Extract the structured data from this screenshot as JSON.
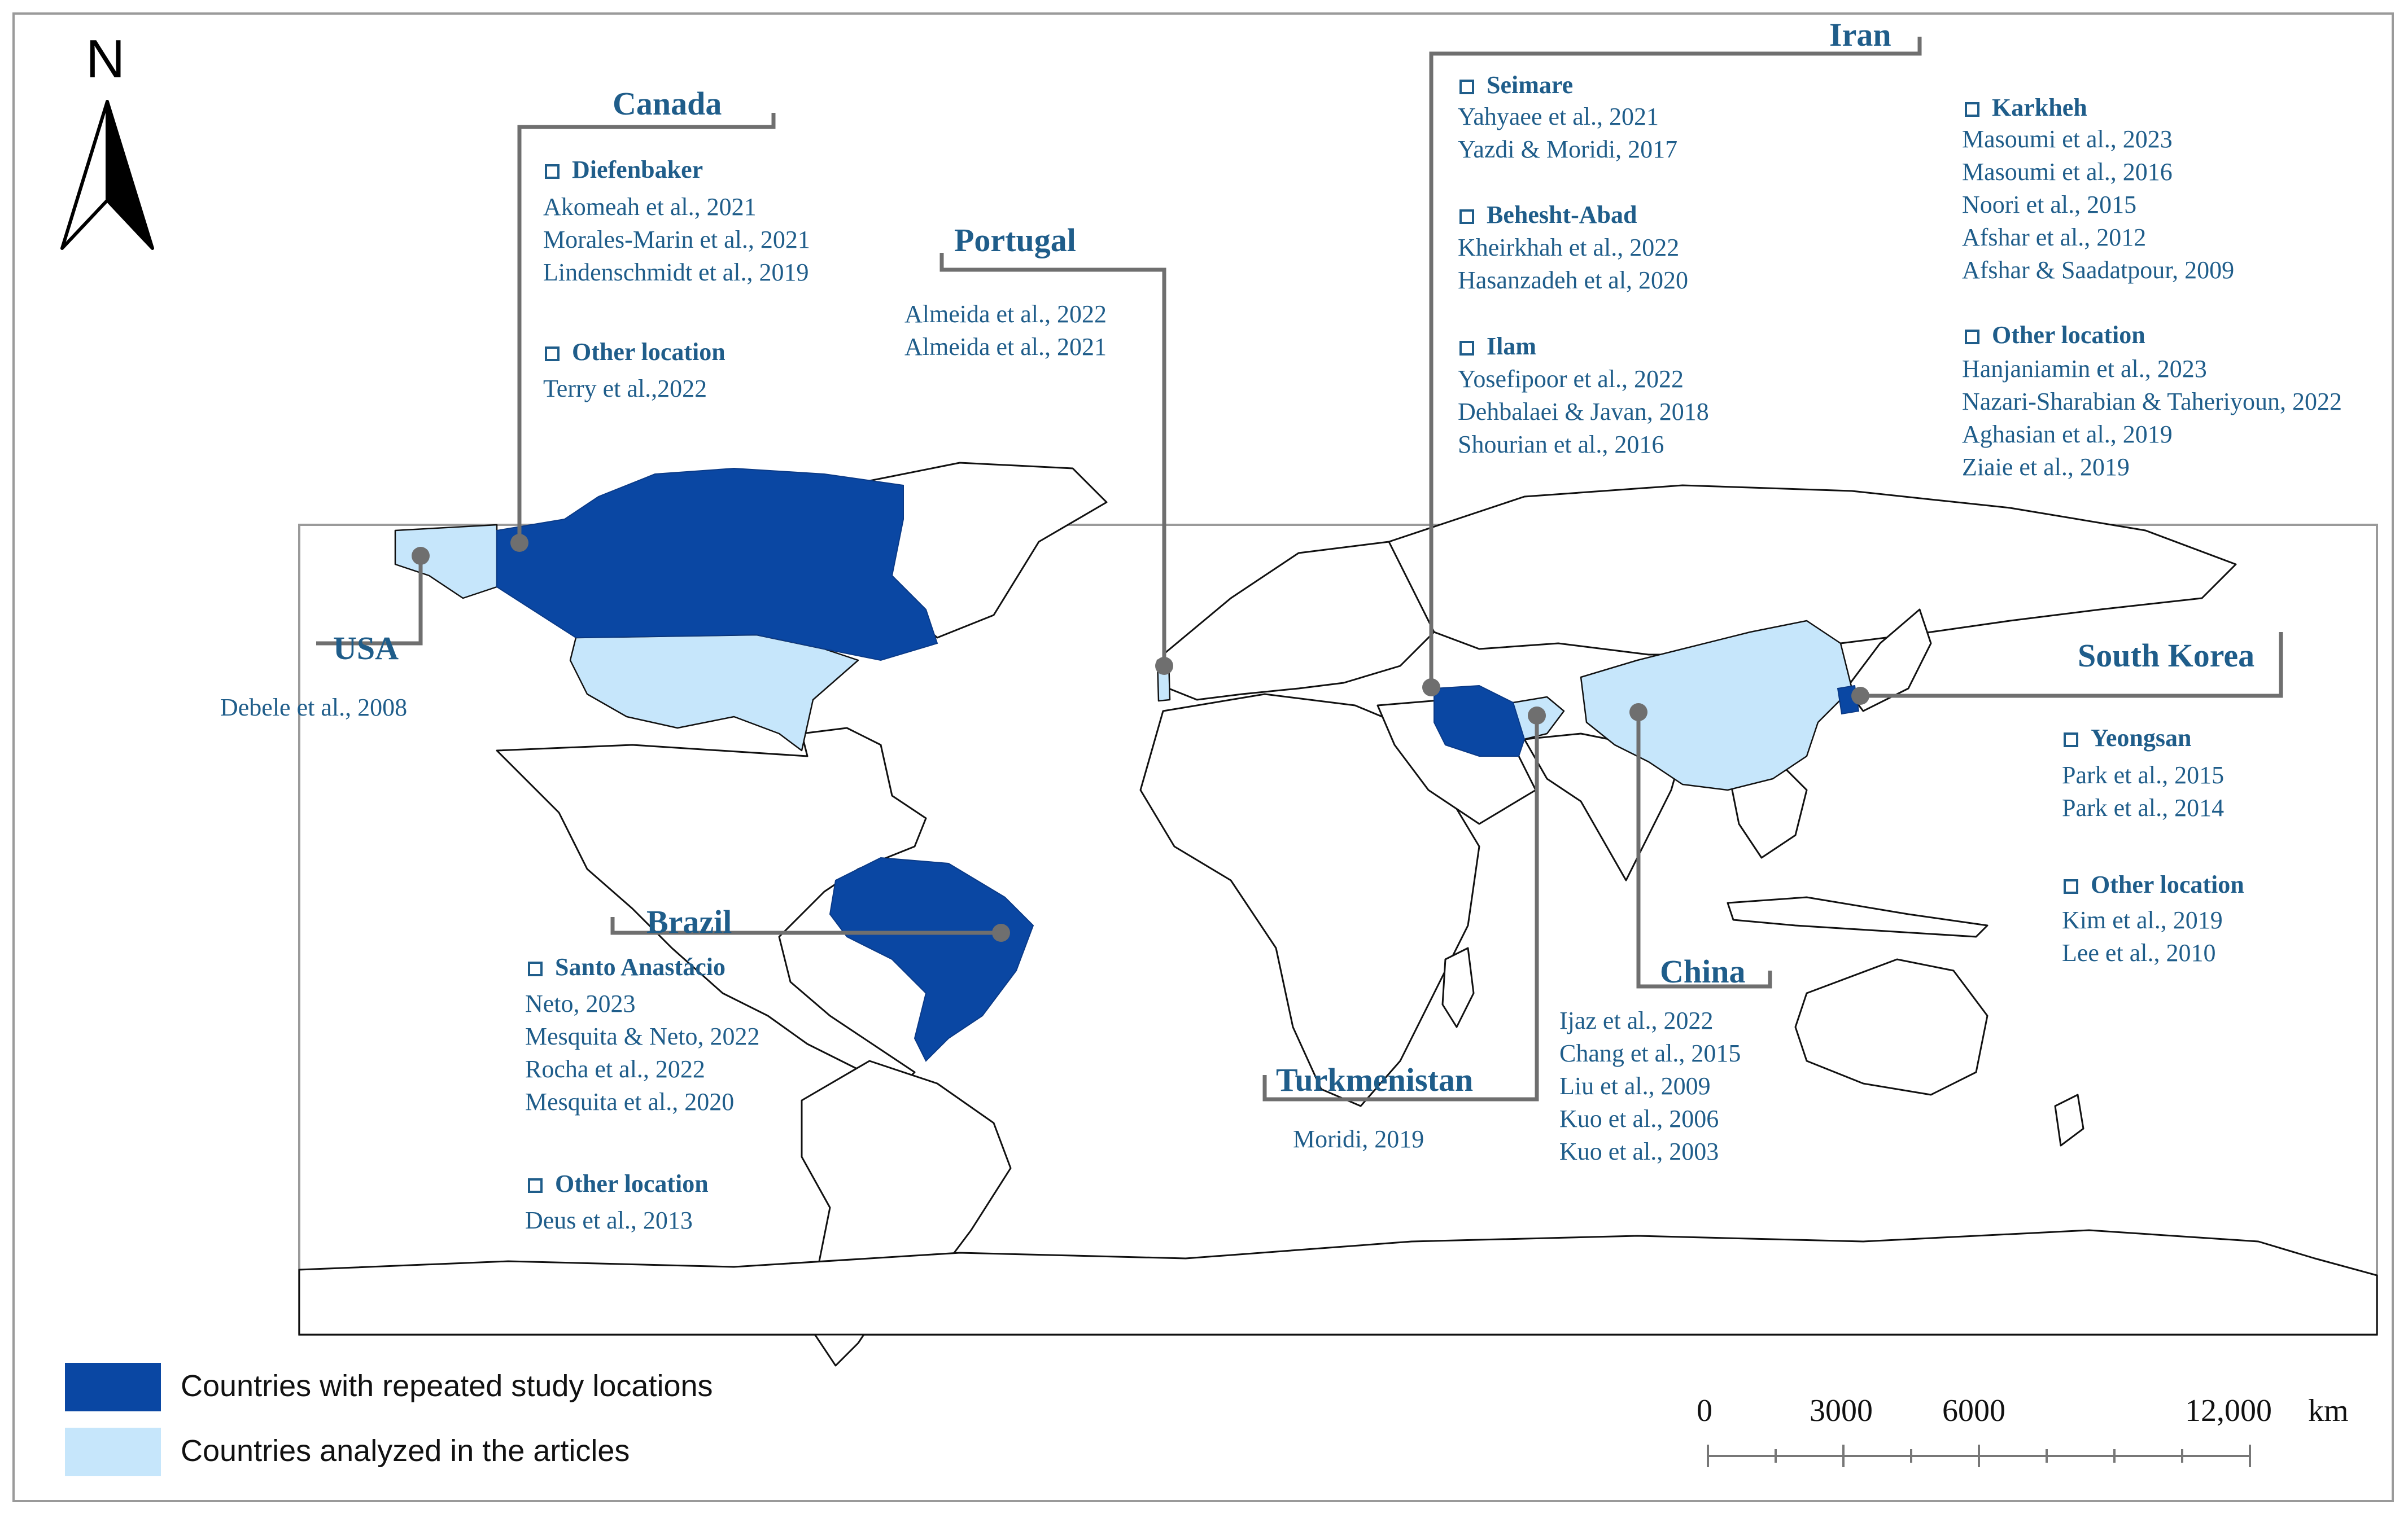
{
  "north_arrow": {
    "label": "N",
    "icon": "north-arrow-icon"
  },
  "colors": {
    "repeated": "#0a47a3",
    "analyzed": "#c6e6fb",
    "label_text": "#1f5d8a",
    "leader_line": "#6f6f6f"
  },
  "labels": {
    "canada": {
      "country": "Canada",
      "groups": [
        {
          "site": "Diefenbaker",
          "refs": [
            "Akomeah et al., 2021",
            "Morales-Marin et al., 2021",
            "Lindenschmidt et al., 2019"
          ]
        },
        {
          "site": "Other location",
          "refs": [
            "Terry et al.,2022"
          ]
        }
      ]
    },
    "portugal": {
      "country": "Portugal",
      "refs": [
        "Almeida et al., 2022",
        "Almeida et al., 2021"
      ]
    },
    "usa": {
      "country": "USA",
      "refs": [
        "Debele et al., 2008"
      ]
    },
    "iran": {
      "country": "Iran",
      "groups_left": [
        {
          "site": "Seimare",
          "refs": [
            "Yahyaee et al., 2021",
            "Yazdi & Moridi, 2017"
          ]
        },
        {
          "site": "Behesht-Abad",
          "refs": [
            "Kheirkhah et al., 2022",
            "Hasanzadeh et al, 2020"
          ]
        },
        {
          "site": "Ilam",
          "refs": [
            "Yosefipoor et al., 2022",
            "Dehbalaei & Javan, 2018",
            "Shourian et al., 2016"
          ]
        }
      ],
      "groups_right": [
        {
          "site": "Karkheh",
          "refs": [
            "Masoumi et al., 2023",
            "Masoumi et al., 2016",
            "Noori et al., 2015",
            "Afshar et al., 2012",
            "Afshar & Saadatpour, 2009"
          ]
        },
        {
          "site": "Other location",
          "refs": [
            "Hanjaniamin et al., 2023",
            "Nazari-Sharabian & Taheriyoun, 2022",
            "Aghasian et al., 2019",
            "Ziaie et al., 2019"
          ]
        }
      ]
    },
    "south_korea": {
      "country": "South Korea",
      "groups": [
        {
          "site": "Yeongsan",
          "refs": [
            "Park et al., 2015",
            "Park et al., 2014"
          ]
        },
        {
          "site": "Other location",
          "refs": [
            "Kim et al., 2019",
            "Lee et al., 2010"
          ]
        }
      ]
    },
    "brazil": {
      "country": "Brazil",
      "groups": [
        {
          "site": "Santo Anastácio",
          "refs": [
            "Neto, 2023",
            "Mesquita & Neto, 2022",
            "Rocha et al., 2022",
            "Mesquita et al., 2020"
          ]
        },
        {
          "site": "Other location",
          "refs": [
            "Deus et al., 2013"
          ]
        }
      ]
    },
    "turkmenistan": {
      "country": "Turkmenistan",
      "refs": [
        "Moridi, 2019"
      ]
    },
    "china": {
      "country": "China",
      "refs": [
        "Ijaz et al., 2022",
        "Chang et al., 2015",
        "Liu et al., 2009",
        "Kuo et al., 2006",
        "Kuo et al., 2003"
      ]
    }
  },
  "legend": {
    "items": [
      {
        "label": "Countries with repeated study locations",
        "color": "#0a47a3"
      },
      {
        "label": "Countries analyzed in the articles",
        "color": "#c6e6fb"
      }
    ]
  },
  "scale_bar": {
    "ticks": [
      "0",
      "3000",
      "6000",
      "12,000"
    ],
    "unit": "km"
  }
}
